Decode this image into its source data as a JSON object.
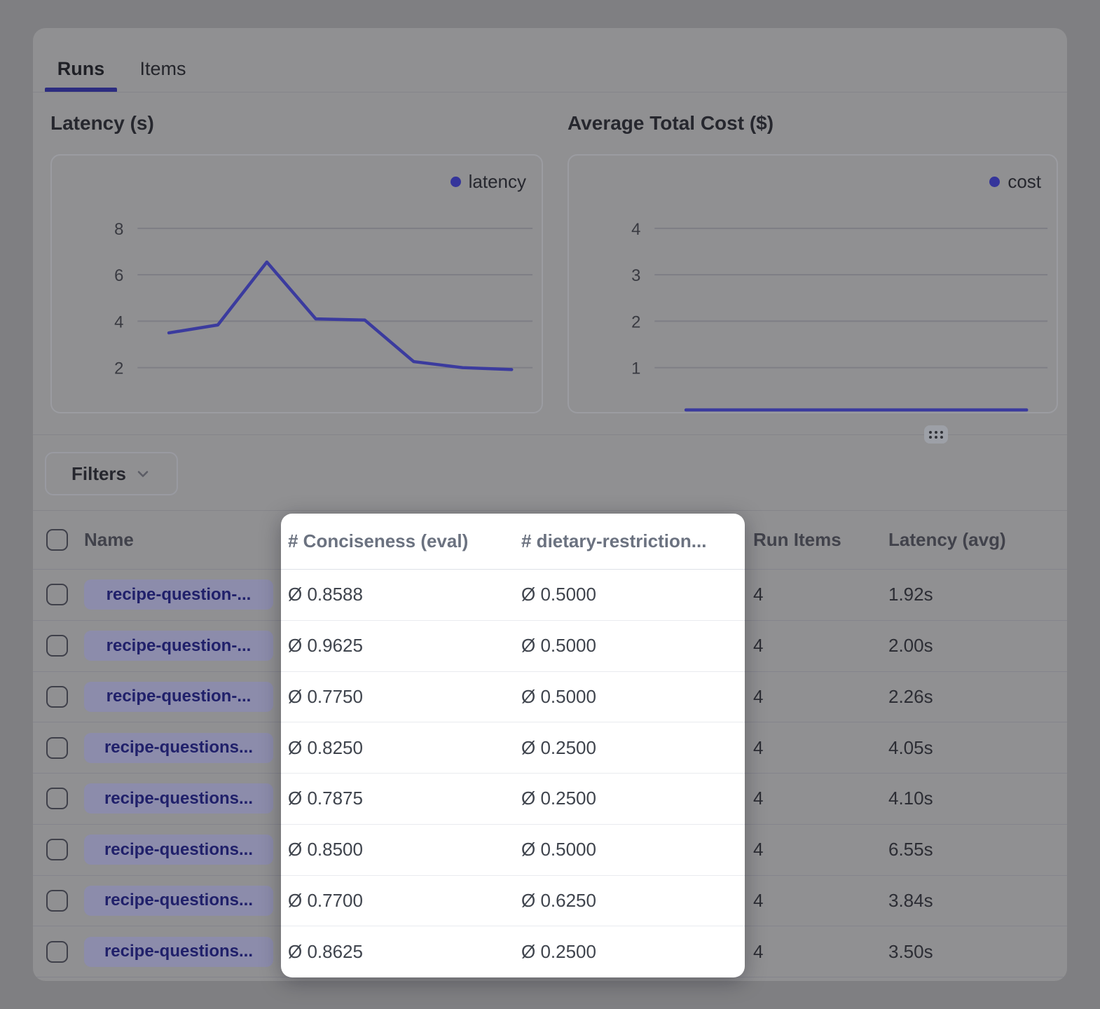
{
  "tabs": [
    {
      "label": "Runs",
      "active": true
    },
    {
      "label": "Items",
      "active": false
    }
  ],
  "chart_data": [
    {
      "id": "latency",
      "type": "line",
      "title": "Latency (s)",
      "legend": "latency",
      "yticks": [
        8,
        6,
        4,
        2
      ],
      "x": [
        1,
        2,
        3,
        4,
        5,
        6,
        7,
        8
      ],
      "values": [
        3.5,
        3.84,
        6.55,
        4.1,
        4.05,
        2.26,
        2.0,
        1.92
      ],
      "ylim_implied": [
        0,
        9
      ],
      "grid": "horizontal",
      "legend_position": "top-right"
    },
    {
      "id": "cost",
      "type": "line",
      "title": "Average Total Cost ($)",
      "legend": "cost",
      "yticks": [
        4,
        3,
        2,
        1
      ],
      "x": [
        1,
        2,
        3,
        4,
        5,
        6,
        7,
        8
      ],
      "values": [
        0,
        0,
        0,
        0,
        0,
        0,
        0,
        0
      ],
      "ylim_implied": [
        0,
        4.5
      ],
      "grid": "horizontal",
      "legend_position": "top-right"
    }
  ],
  "filters": {
    "label": "Filters"
  },
  "table": {
    "columns": {
      "name": "Name",
      "conciseness": "# Conciseness (eval)",
      "dietary": "# dietary-restriction...",
      "run_items": "Run Items",
      "latency_avg": "Latency (avg)"
    },
    "rows": [
      {
        "name": "recipe-question-...",
        "conciseness": "Ø 0.8588",
        "dietary": "Ø 0.5000",
        "run_items": "4",
        "latency_avg": "1.92s"
      },
      {
        "name": "recipe-question-...",
        "conciseness": "Ø 0.9625",
        "dietary": "Ø 0.5000",
        "run_items": "4",
        "latency_avg": "2.00s"
      },
      {
        "name": "recipe-question-...",
        "conciseness": "Ø 0.7750",
        "dietary": "Ø 0.5000",
        "run_items": "4",
        "latency_avg": "2.26s"
      },
      {
        "name": "recipe-questions...",
        "conciseness": "Ø 0.8250",
        "dietary": "Ø 0.2500",
        "run_items": "4",
        "latency_avg": "4.05s"
      },
      {
        "name": "recipe-questions...",
        "conciseness": "Ø 0.7875",
        "dietary": "Ø 0.2500",
        "run_items": "4",
        "latency_avg": "4.10s"
      },
      {
        "name": "recipe-questions...",
        "conciseness": "Ø 0.8500",
        "dietary": "Ø 0.5000",
        "run_items": "4",
        "latency_avg": "6.55s"
      },
      {
        "name": "recipe-questions...",
        "conciseness": "Ø 0.7700",
        "dietary": "Ø 0.6250",
        "run_items": "4",
        "latency_avg": "3.84s"
      },
      {
        "name": "recipe-questions...",
        "conciseness": "Ø 0.8625",
        "dietary": "Ø 0.2500",
        "run_items": "4",
        "latency_avg": "3.50s"
      }
    ]
  },
  "icons": {
    "filters_chevron": "chevron-down",
    "drag_handle": "six-dot-grid",
    "legend_marker": "●",
    "average_symbol": "Ø"
  },
  "colors": {
    "accent_indigo": "#4f46e5",
    "line_indigo_dimmed": "#3b3b9e",
    "spotlight_background": "#ffffff",
    "dim_backdrop": "#909092",
    "page_background": "#7f7f82",
    "name_pill_text": "#20206a"
  }
}
